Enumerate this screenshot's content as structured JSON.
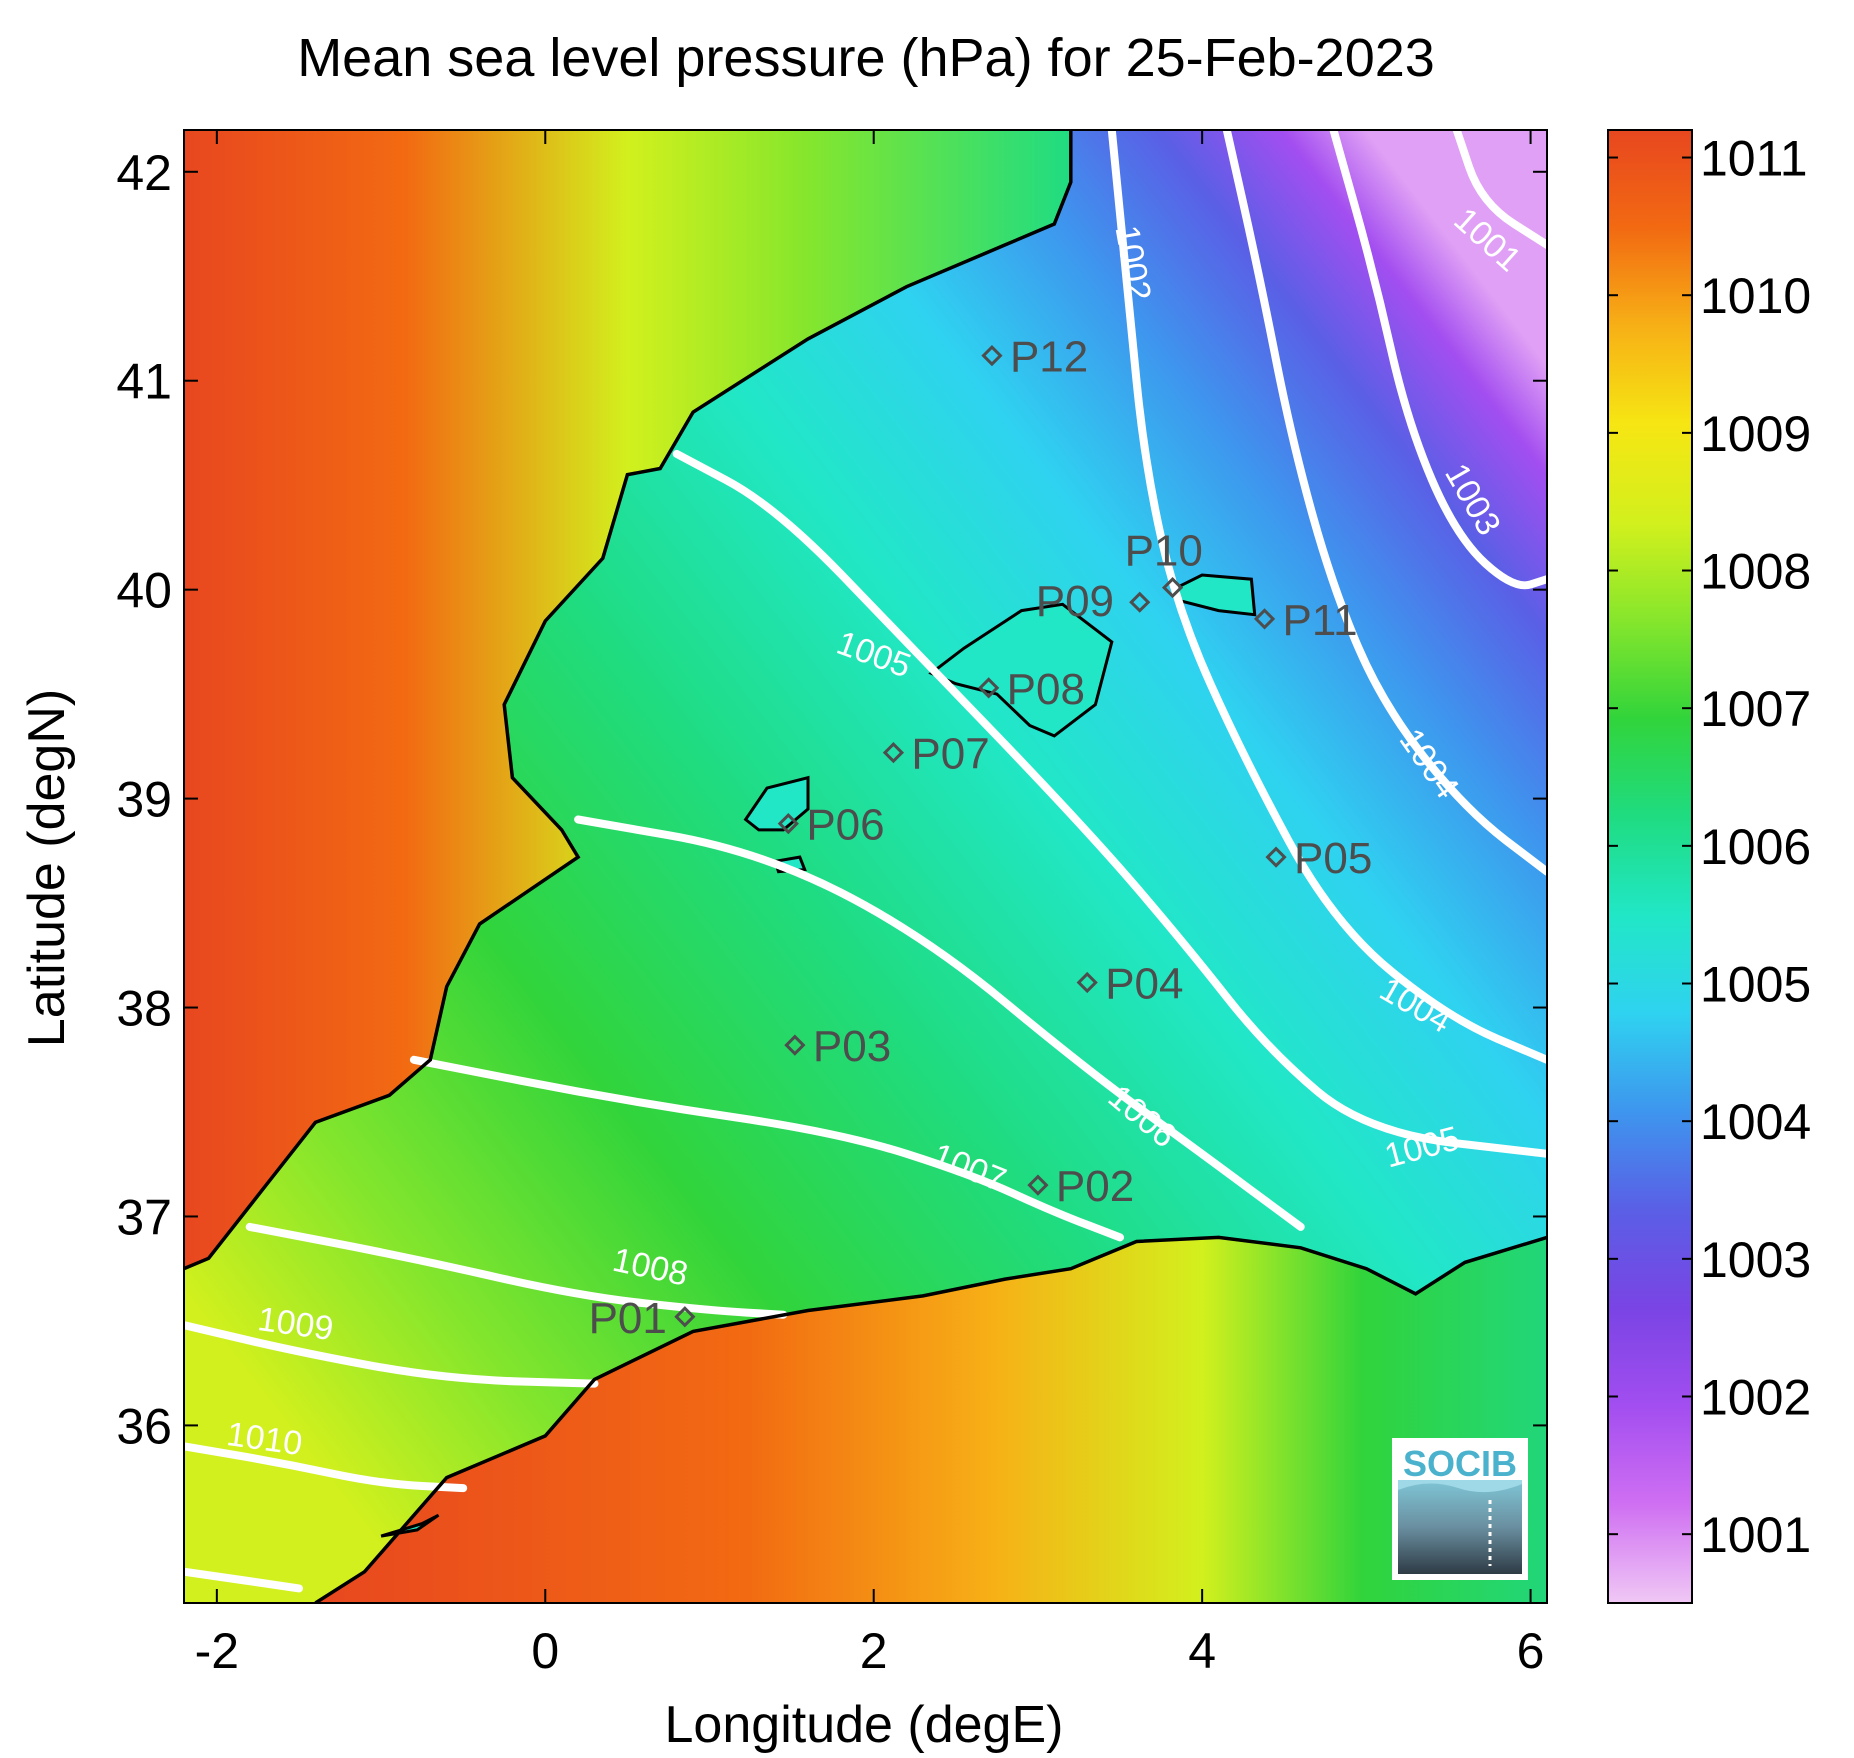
{
  "chart_data": {
    "type": "heatmap",
    "title": "Mean sea level pressure (hPa) for 25-Feb-2023",
    "xlabel": "Longitude (degE)",
    "ylabel": "Latitude (degN)",
    "xlim": [
      -2.2,
      6.1
    ],
    "ylim": [
      35.15,
      42.2
    ],
    "xticks": [
      -2,
      0,
      2,
      4,
      6
    ],
    "yticks": [
      36,
      37,
      38,
      39,
      40,
      41,
      42
    ],
    "colorbar": {
      "ticks": [
        1001,
        1002,
        1003,
        1004,
        1005,
        1006,
        1007,
        1008,
        1009,
        1010,
        1011
      ],
      "range": [
        1000.5,
        1011.2
      ],
      "colormap": [
        "#f0c8f5",
        "#cf6ff2",
        "#a34ef0",
        "#7a44e4",
        "#5a5fe6",
        "#3e95ee",
        "#2fd2f0",
        "#21e7c6",
        "#1fdc82",
        "#31d43b",
        "#86e62c",
        "#d2f01d",
        "#f6e613",
        "#f7b016",
        "#f26a12",
        "#e8471f"
      ]
    },
    "contour_levels": [
      {
        "label": "1001",
        "value": 1001
      },
      {
        "label": "1002",
        "value": 1002
      },
      {
        "label": "1003",
        "value": 1003
      },
      {
        "label": "1004",
        "value": 1004
      },
      {
        "label": "1004",
        "value": 1004
      },
      {
        "label": "1005",
        "value": 1005
      },
      {
        "label": "1005",
        "value": 1005
      },
      {
        "label": "1006",
        "value": 1006
      },
      {
        "label": "1007",
        "value": 1007
      },
      {
        "label": "1008",
        "value": 1008
      },
      {
        "label": "1009",
        "value": 1009
      },
      {
        "label": "1010",
        "value": 1010
      }
    ],
    "stations": [
      {
        "name": "P01",
        "lon": 0.85,
        "lat": 36.52
      },
      {
        "name": "P02",
        "lon": 3.0,
        "lat": 37.15
      },
      {
        "name": "P03",
        "lon": 1.52,
        "lat": 37.82
      },
      {
        "name": "P04",
        "lon": 3.3,
        "lat": 38.12
      },
      {
        "name": "P05",
        "lon": 4.45,
        "lat": 38.72
      },
      {
        "name": "P06",
        "lon": 1.48,
        "lat": 38.88
      },
      {
        "name": "P07",
        "lon": 2.12,
        "lat": 39.22
      },
      {
        "name": "P08",
        "lon": 2.7,
        "lat": 39.53
      },
      {
        "name": "P09",
        "lon": 3.62,
        "lat": 39.94
      },
      {
        "name": "P10",
        "lon": 3.82,
        "lat": 40.01
      },
      {
        "name": "P11",
        "lon": 4.38,
        "lat": 39.86
      },
      {
        "name": "P12",
        "lon": 2.72,
        "lat": 41.12
      }
    ]
  },
  "logo": {
    "text": "SOCIB"
  },
  "colors": {
    "background": "#ffffff",
    "coastline": "#000000",
    "contour": "#ffffff",
    "station": "#4d4d4d"
  }
}
